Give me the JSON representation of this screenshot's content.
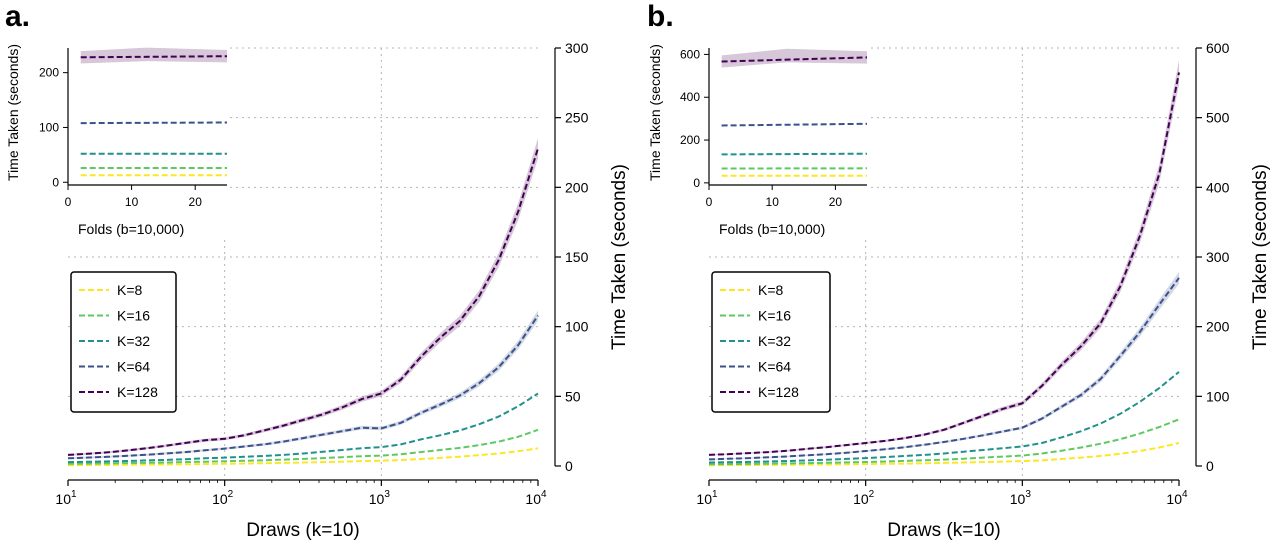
{
  "colors": {
    "K=8": "#fde725",
    "K=16": "#5ec962",
    "K=32": "#21918c",
    "K=64": "#3b528b",
    "K=128": "#440154"
  },
  "chart_data": [
    {
      "panel": "a.",
      "type": "line",
      "xlabel": "Draws (k=10)",
      "ylabel": "Time Taken (seconds)",
      "x_scale": "log",
      "xlim": [
        10,
        10000
      ],
      "x_ticks": [
        "10^1",
        "10^2",
        "10^3",
        "10^4"
      ],
      "ylim": [
        0,
        300
      ],
      "y_ticks": [
        0,
        50,
        100,
        150,
        200,
        250,
        300
      ],
      "y_axis_side": "right",
      "grid": true,
      "legend": {
        "placement": "center-left",
        "entries": [
          "K=8",
          "K=16",
          "K=32",
          "K=64",
          "K=128"
        ]
      },
      "x": [
        10,
        13,
        18,
        24,
        32,
        42,
        56,
        75,
        100,
        133,
        178,
        237,
        316,
        422,
        562,
        750,
        1000,
        1334,
        1778,
        2371,
        3162,
        4217,
        5623,
        7499,
        10000
      ],
      "series": [
        {
          "name": "K=8",
          "values": [
            0.6,
            0.7,
            0.8,
            0.9,
            1.0,
            1.1,
            1.2,
            1.4,
            1.6,
            1.8,
            2.0,
            2.2,
            2.5,
            2.8,
            3.1,
            3.5,
            3.8,
            4.3,
            5.0,
            5.8,
            6.7,
            7.8,
            9.0,
            10.6,
            12.7
          ]
        },
        {
          "name": "K=16",
          "values": [
            1.6,
            1.7,
            1.9,
            2.1,
            2.3,
            2.5,
            2.8,
            3.1,
            3.4,
            3.7,
            4.1,
            4.6,
            5.1,
            5.7,
            6.3,
            7.0,
            7.5,
            8.4,
            10.0,
            11.5,
            13.0,
            15.0,
            17.5,
            21.0,
            26.0
          ]
        },
        {
          "name": "K=32",
          "values": [
            2.8,
            3.0,
            3.3,
            3.6,
            4.0,
            4.4,
            4.9,
            5.5,
            6.0,
            6.6,
            7.2,
            8.0,
            9.0,
            10.2,
            11.5,
            12.8,
            13.6,
            15.5,
            19.0,
            22.0,
            25.5,
            30.0,
            35.5,
            43.0,
            52.0
          ]
        },
        {
          "name": "K=64",
          "values": [
            5.5,
            6.0,
            6.6,
            7.3,
            8.1,
            9.0,
            10.0,
            11.3,
            12.5,
            14.0,
            15.5,
            17.5,
            20.0,
            22.5,
            25.0,
            27.5,
            27.0,
            31.0,
            38.0,
            44.0,
            50.5,
            59.5,
            71.0,
            87.0,
            108.0
          ]
        },
        {
          "name": "K=128",
          "values": [
            8.0,
            8.7,
            9.8,
            11.2,
            12.8,
            14.5,
            16.5,
            18.5,
            19.5,
            22.0,
            25.5,
            29.0,
            33.0,
            37.0,
            42.0,
            48.0,
            52.0,
            62.0,
            78.0,
            92.0,
            104.0,
            122.0,
            148.0,
            183.0,
            228.0
          ]
        }
      ],
      "inset": {
        "xlabel": "Folds (b=10,000)",
        "ylabel": "Time Taken (seconds)",
        "xlim": [
          0,
          25
        ],
        "x_ticks": [
          0,
          10,
          20
        ],
        "ylim": [
          -5,
          245
        ],
        "y_ticks": [
          0,
          100,
          200
        ],
        "x": [
          2,
          25
        ],
        "series": [
          {
            "name": "K=8",
            "values": [
              12.7,
              12.7
            ]
          },
          {
            "name": "K=16",
            "values": [
              26.0,
              26.0
            ]
          },
          {
            "name": "K=32",
            "values": [
              52.0,
              52.0
            ]
          },
          {
            "name": "K=64",
            "values": [
              108.0,
              109.0
            ]
          },
          {
            "name": "K=128",
            "values": [
              228.0,
              230.0
            ]
          }
        ]
      }
    },
    {
      "panel": "b.",
      "type": "line",
      "xlabel": "Draws (k=10)",
      "ylabel": "Time Taken (seconds)",
      "x_scale": "log",
      "xlim": [
        10,
        10000
      ],
      "x_ticks": [
        "10^1",
        "10^2",
        "10^3",
        "10^4"
      ],
      "ylim": [
        0,
        600
      ],
      "y_ticks": [
        0,
        100,
        200,
        300,
        400,
        500,
        600
      ],
      "y_axis_side": "right",
      "grid": true,
      "legend": {
        "placement": "center-left",
        "entries": [
          "K=8",
          "K=16",
          "K=32",
          "K=64",
          "K=128"
        ]
      },
      "x": [
        10,
        13,
        18,
        24,
        32,
        42,
        56,
        75,
        100,
        133,
        178,
        237,
        316,
        422,
        562,
        750,
        1000,
        1334,
        1778,
        2371,
        3162,
        4217,
        5623,
        7499,
        10000
      ],
      "series": [
        {
          "name": "K=8",
          "values": [
            1.2,
            1.3,
            1.4,
            1.6,
            1.8,
            2.0,
            2.2,
            2.5,
            2.8,
            3.1,
            3.5,
            3.9,
            4.4,
            5.0,
            5.6,
            6.3,
            7.0,
            8.0,
            10.0,
            12.0,
            14.5,
            17.5,
            21.5,
            26.5,
            33.0
          ]
        },
        {
          "name": "K=16",
          "values": [
            2.5,
            2.7,
            3.0,
            3.3,
            3.7,
            4.1,
            4.6,
            5.2,
            5.8,
            6.5,
            7.3,
            8.2,
            9.2,
            10.5,
            12.0,
            13.5,
            15.0,
            18.0,
            22.0,
            26.5,
            32.0,
            38.5,
            46.5,
            56.0,
            67.0
          ]
        },
        {
          "name": "K=32",
          "values": [
            5.0,
            5.4,
            5.9,
            6.5,
            7.2,
            8.0,
            9.0,
            10.2,
            11.4,
            12.8,
            14.3,
            16.0,
            18.0,
            20.5,
            23.0,
            25.5,
            28.0,
            33.0,
            41.0,
            50.0,
            61.0,
            75.0,
            92.0,
            112.0,
            135.0
          ]
        },
        {
          "name": "K=64",
          "values": [
            9.5,
            10.3,
            11.3,
            12.5,
            13.8,
            15.3,
            17.0,
            19.0,
            21.5,
            24.0,
            27.0,
            30.5,
            34.5,
            39.0,
            44.0,
            49.5,
            55.0,
            68.0,
            85.0,
            102.0,
            125.0,
            158.0,
            192.0,
            232.0,
            270.0
          ]
        },
        {
          "name": "K=128",
          "values": [
            16.0,
            17.0,
            18.5,
            20.0,
            22.0,
            24.5,
            27.0,
            30.0,
            33.0,
            36.0,
            40.0,
            45.0,
            52.0,
            62.0,
            72.0,
            82.0,
            90.0,
            115.0,
            145.0,
            172.0,
            205.0,
            258.0,
            330.0,
            420.0,
            565.0
          ]
        }
      ],
      "inset": {
        "xlabel": "Folds (b=10,000)",
        "ylabel": "Time Taken (seconds)",
        "xlim": [
          0,
          25
        ],
        "x_ticks": [
          0,
          10,
          20
        ],
        "ylim": [
          -10,
          630
        ],
        "y_ticks": [
          0,
          200,
          400,
          600
        ],
        "x": [
          2,
          25
        ],
        "series": [
          {
            "name": "K=8",
            "values": [
              33.0,
              33.0
            ]
          },
          {
            "name": "K=16",
            "values": [
              67.0,
              68.0
            ]
          },
          {
            "name": "K=32",
            "values": [
              133.0,
              136.0
            ]
          },
          {
            "name": "K=64",
            "values": [
              268.0,
              276.0
            ]
          },
          {
            "name": "K=128",
            "values": [
              567.0,
              586.0
            ]
          }
        ]
      }
    }
  ]
}
